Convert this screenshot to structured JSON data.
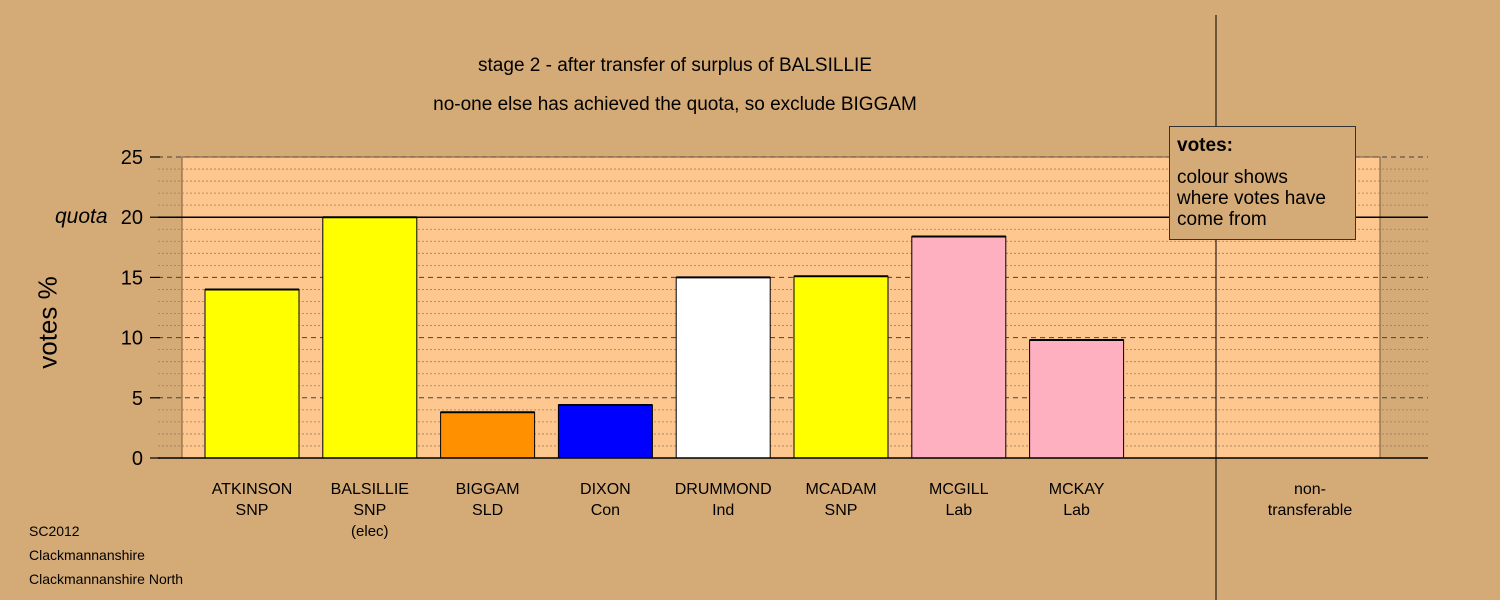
{
  "header": {
    "title": "stage 2 - after transfer of surplus of BALSILLIE",
    "subtitle": "no-one else has achieved the quota, so exclude BIGGAM"
  },
  "legend": {
    "heading": "votes:",
    "text": "colour shows where votes have come from"
  },
  "footer": {
    "line1": "SC2012",
    "line2": "Clackmannanshire",
    "line3": "Clackmannanshire North"
  },
  "chart_data": {
    "type": "bar",
    "ylabel": "votes %",
    "quota_label": "quota",
    "quota": 20,
    "ylim": [
      0,
      25
    ],
    "yticks": [
      0,
      5,
      10,
      15,
      20,
      25
    ],
    "grid": true,
    "categories": [
      {
        "name": "ATKINSON",
        "party": "SNP",
        "note": "",
        "value": 14.0,
        "color": "#ffff00"
      },
      {
        "name": "BALSILLIE",
        "party": "SNP",
        "note": "(elec)",
        "value": 20.0,
        "color": "#ffff00"
      },
      {
        "name": "BIGGAM",
        "party": "SLD",
        "note": "",
        "value": 3.8,
        "color": "#ff9000"
      },
      {
        "name": "DIXON",
        "party": "Con",
        "note": "",
        "value": 4.4,
        "color": "#0000ff"
      },
      {
        "name": "DRUMMOND",
        "party": "Ind",
        "note": "",
        "value": 15.0,
        "color": "#ffffff"
      },
      {
        "name": "MCADAM",
        "party": "SNP",
        "note": "",
        "value": 15.1,
        "color": "#ffff00"
      },
      {
        "name": "MCGILL",
        "party": "Lab",
        "note": "",
        "value": 18.4,
        "color": "#ffb0c0"
      },
      {
        "name": "MCKAY",
        "party": "Lab",
        "note": "",
        "value": 9.8,
        "color": "#ffb0c0"
      }
    ],
    "nontransferable": {
      "label_line1": "non-",
      "label_line2": "transferable",
      "value": 0
    }
  }
}
